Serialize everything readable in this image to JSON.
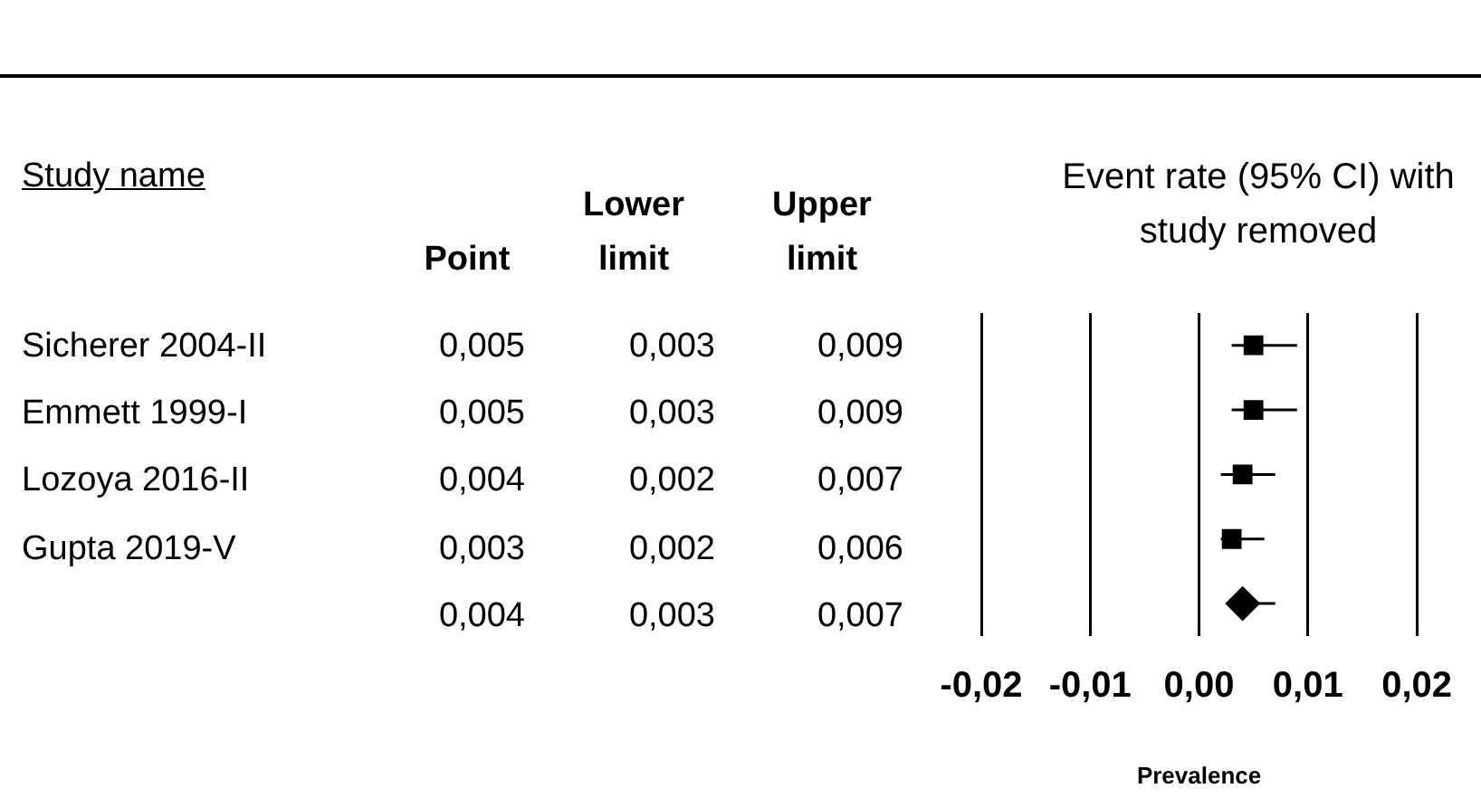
{
  "chart_data": [
    {
      "type": "other",
      "annotations": [
        "Study name",
        "Point",
        "Lower limit",
        "Upper limit",
        "Sicherer 2004-II",
        "0,005",
        "0,003",
        "0,009",
        "Emmett 1999-I",
        "0,005",
        "0,003",
        "0,009",
        "Lozoya 2016-II",
        "0,004",
        "0,002",
        "0,007",
        "Gupta 2019-V",
        "0,003",
        "0,002",
        "0,006",
        null,
        "0,004",
        "0,003",
        "0,007"
      ]
    },
    {
      "type": "scatter",
      "orientation": "horizontal",
      "title": "Event rate (95% CI) with study removed",
      "xlabel": "Prevalence",
      "categories": [
        null,
        null,
        null,
        null,
        null
      ],
      "series": [
        {
          "marker": "square",
          "color": "#000000",
          "values": [
            0.005,
            0.005,
            0.004,
            0.003,
            null
          ],
          "errors": [
            [
              0.003,
              0.009
            ],
            [
              0.003,
              0.009
            ],
            [
              0.002,
              0.007
            ],
            [
              0.002,
              0.006
            ],
            null
          ]
        },
        {
          "marker": "diamond",
          "color": "#000000",
          "values": [
            null,
            null,
            null,
            null,
            0.004
          ],
          "errors": [
            null,
            null,
            null,
            null,
            [
              0.003,
              0.007
            ]
          ]
        }
      ],
      "xlim": [
        -0.02,
        0.02
      ],
      "xticks": [
        {
          "value": -0.02,
          "label": "-0,02"
        },
        {
          "value": -0.01,
          "label": "-0,01"
        },
        {
          "value": 0,
          "label": "0,00"
        },
        {
          "value": 0.01,
          "label": "0,01"
        },
        {
          "value": 0.02,
          "label": "0,02"
        }
      ],
      "grid": "x",
      "legend": false
    }
  ]
}
